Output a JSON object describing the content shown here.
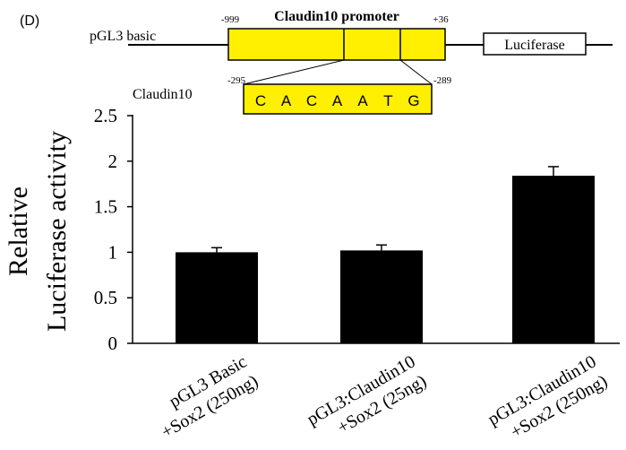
{
  "panel_label": "(D)",
  "construct": {
    "vector_label": "pGL3 basic",
    "promoter_title": "Claudin10 promoter",
    "promoter_start": "-999",
    "promoter_end": "+36",
    "reporter_label": "Luciferase",
    "site_gene_label": "Claudin10",
    "site_start": "-295",
    "site_end": "-289",
    "site_sequence": [
      "C",
      "A",
      "C",
      "A",
      "A",
      "T",
      "G"
    ],
    "promoter_color": "#ffef00"
  },
  "chart_data": {
    "type": "bar",
    "ylabel_lines": [
      "Relative",
      "Luciferase activity"
    ],
    "ylim": [
      0,
      2.5
    ],
    "yticks": [
      0,
      0.5,
      1,
      1.5,
      2,
      2.5
    ],
    "ytick_labels": [
      "0",
      "0.5",
      "1",
      "1.5",
      "2",
      "2.5"
    ],
    "categories": [
      [
        "pGL3 Basic",
        "+Sox2 (250ng)"
      ],
      [
        "pGL3:Claudin10",
        "+Sox2 (25ng)"
      ],
      [
        "pGL3:Claudin10",
        "+Sox2 (250ng)"
      ]
    ],
    "values": [
      1.0,
      1.02,
      1.84
    ],
    "errors": [
      0.05,
      0.06,
      0.1
    ],
    "bar_color": "#000000",
    "grid": false,
    "legend": "none"
  }
}
